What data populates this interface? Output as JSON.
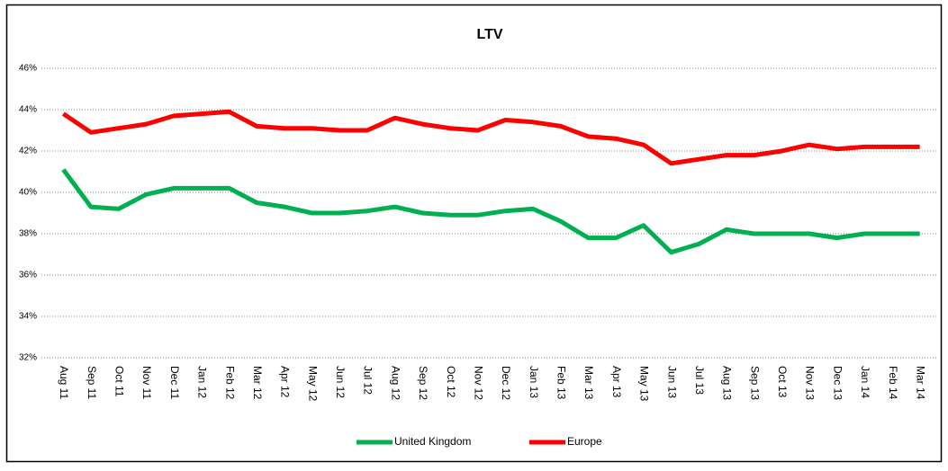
{
  "chart_data": {
    "type": "line",
    "title": "LTV",
    "categories": [
      "Aug 11",
      "Sep 11",
      "Oct 11",
      "Nov 11",
      "Dec 11",
      "Jan 12",
      "Feb 12",
      "Mar 12",
      "Apr 12",
      "May 12",
      "Jun 12",
      "Jul 12",
      "Aug 12",
      "Sep 12",
      "Oct 12",
      "Nov 12",
      "Dec 12",
      "Jan 13",
      "Feb 13",
      "Mar 13",
      "Apr 13",
      "May 13",
      "Jun 13",
      "Jul 13",
      "Aug 13",
      "Sep 13",
      "Oct 13",
      "Nov 13",
      "Dec 13",
      "Jan 14",
      "Feb 14",
      "Mar 14"
    ],
    "series": [
      {
        "name": "United Kingdom",
        "color": "#00b050",
        "values": [
          41.1,
          39.3,
          39.2,
          39.9,
          40.2,
          40.2,
          40.2,
          39.5,
          39.3,
          39.0,
          39.0,
          39.1,
          39.3,
          39.0,
          38.9,
          38.9,
          39.1,
          39.2,
          38.6,
          37.8,
          37.8,
          38.4,
          37.1,
          37.5,
          38.2,
          38.0,
          38.0,
          38.0,
          37.8,
          38.0,
          38.0,
          38.0
        ]
      },
      {
        "name": "Europe",
        "color": "#ff0000",
        "values": [
          43.8,
          42.9,
          43.1,
          43.3,
          43.7,
          43.8,
          43.9,
          43.2,
          43.1,
          43.1,
          43.0,
          43.0,
          43.6,
          43.3,
          43.1,
          43.0,
          43.5,
          43.4,
          43.2,
          42.7,
          42.6,
          42.3,
          41.4,
          41.6,
          41.8,
          41.8,
          42.0,
          42.3,
          42.1,
          42.2,
          42.2,
          42.2
        ]
      }
    ],
    "ylim": [
      32,
      46
    ],
    "yticks": [
      {
        "value": 32,
        "label": "32%"
      },
      {
        "value": 34,
        "label": "34%"
      },
      {
        "value": 36,
        "label": "36%"
      },
      {
        "value": 38,
        "label": "38%"
      },
      {
        "value": 40,
        "label": "40%"
      },
      {
        "value": 42,
        "label": "42%"
      },
      {
        "value": 44,
        "label": "44%"
      },
      {
        "value": 46,
        "label": "46%"
      }
    ],
    "grid": true,
    "legend": "bottom"
  }
}
